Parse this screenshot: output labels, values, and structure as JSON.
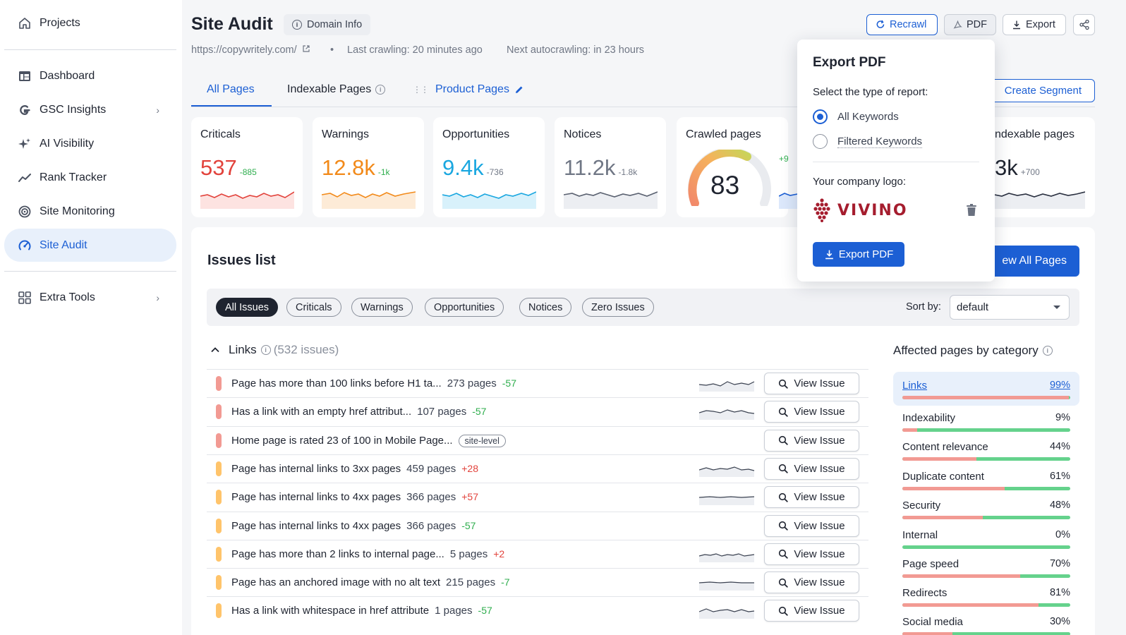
{
  "sidebar": {
    "projects": "Projects",
    "items": [
      {
        "label": "Dashboard",
        "icon": "dashboard-icon"
      },
      {
        "label": "GSC Insights",
        "icon": "google-icon"
      },
      {
        "label": "AI Visibility",
        "icon": "sparkle-icon"
      },
      {
        "label": "Rank Tracker",
        "icon": "trend-icon"
      },
      {
        "label": "Site Monitoring",
        "icon": "monitor-icon"
      },
      {
        "label": "Site Audit",
        "icon": "gauge-icon",
        "active": true
      },
      {
        "label": "Extra Tools",
        "icon": "grid-icon"
      }
    ]
  },
  "header": {
    "title": "Site Audit",
    "domain_info": "Domain Info",
    "url": "https://copywritely.com/",
    "last_crawl": "Last crawling: 20 minutes ago",
    "next_crawl": "Next autocrawling: in 23 hours",
    "buttons": {
      "recrawl": "Recrawl",
      "pdf": "PDF",
      "export": "Export"
    }
  },
  "tabs": {
    "all": "All Pages",
    "indexable": "Indexable Pages",
    "product": "Product Pages",
    "create_segment": "Create Segment"
  },
  "cards": [
    {
      "title": "Criticals",
      "value": "537",
      "delta": "-885",
      "color": "#e2433c"
    },
    {
      "title": "Warnings",
      "value": "12.8k",
      "delta": "-1k",
      "color": "#f28a1a"
    },
    {
      "title": "Opportunities",
      "value": "9.4k",
      "delta": "-736",
      "color": "#1aa7e0"
    },
    {
      "title": "Notices",
      "value": "11.2k",
      "delta": "-1.8k",
      "color": "#707785"
    },
    {
      "title": "Crawled pages",
      "value": "83",
      "delta": "+9",
      "color": "#1f2430"
    },
    {
      "title": "ndexable pages",
      "value": "3k",
      "delta": "+700",
      "color": "#1f2430"
    }
  ],
  "issues": {
    "title": "Issues list",
    "view_all": "ew All Pages",
    "filters": [
      "All Issues",
      "Criticals",
      "Warnings",
      "Opportunities",
      "Notices",
      "Zero Issues"
    ],
    "sort_label": "Sort by:",
    "sort_value": "default",
    "group": {
      "name": "Links",
      "count": "(532 issues)"
    },
    "view_issue": "View Issue",
    "rows": [
      {
        "text": "Page has more than 100 links before H1 ta...",
        "pages": "273 pages",
        "delta": "-57",
        "sev": "critical",
        "spark": true
      },
      {
        "text": "Has a link with an empty href attribut...",
        "pages": "107 pages",
        "delta": "-57",
        "sev": "critical",
        "spark": true
      },
      {
        "text": "Home page is rated 23 of 100 in Mobile Page...",
        "pages": "",
        "delta": "",
        "tag": "site-level",
        "sev": "critical",
        "spark": false
      },
      {
        "text": "Page has internal links to 3xx pages",
        "pages": "459 pages",
        "delta": "+28",
        "sev": "warning",
        "spark": true
      },
      {
        "text": "Page has internal links to 4xx pages",
        "pages": "366 pages",
        "delta": "+57",
        "sev": "warning",
        "spark": true
      },
      {
        "text": "Page has internal links to 4xx pages",
        "pages": "366 pages",
        "delta": "-57",
        "sev": "warning",
        "spark": false
      },
      {
        "text": "Page has more than 2 links to internal page...",
        "pages": "5 pages",
        "delta": "+2",
        "sev": "warning",
        "spark": true
      },
      {
        "text": "Page has an anchored image with no alt text",
        "pages": "215 pages",
        "delta": "-7",
        "sev": "warning",
        "spark": true
      },
      {
        "text": "Has a link with whitespace in href attribute",
        "pages": "1 pages",
        "delta": "-57",
        "sev": "warning",
        "spark": true
      }
    ]
  },
  "affected": {
    "title": "Affected pages by category",
    "rows": [
      {
        "label": "Links",
        "pct": "99%",
        "value": 0.99
      },
      {
        "label": "Indexability",
        "pct": "9%",
        "value": 0.09
      },
      {
        "label": "Content relevance",
        "pct": "44%",
        "value": 0.44
      },
      {
        "label": "Duplicate content",
        "pct": "61%",
        "value": 0.61
      },
      {
        "label": "Security",
        "pct": "48%",
        "value": 0.48
      },
      {
        "label": "Internal",
        "pct": "0%",
        "value": 0.0
      },
      {
        "label": "Page speed",
        "pct": "70%",
        "value": 0.7
      },
      {
        "label": "Redirects",
        "pct": "81%",
        "value": 0.81
      },
      {
        "label": "Social media",
        "pct": "30%",
        "value": 0.3
      }
    ]
  },
  "export_pdf": {
    "title": "Export PDF",
    "type_label": "Select the type of report:",
    "opt_all": "All Keywords",
    "opt_filtered": "Filtered Keywords",
    "logo_label": "Your company logo:",
    "logo_text": "VIVINO",
    "button": "Export PDF"
  },
  "colors": {
    "accent": "#1c5fd4",
    "critical": "#f29a93",
    "warning": "#ffc46b"
  }
}
